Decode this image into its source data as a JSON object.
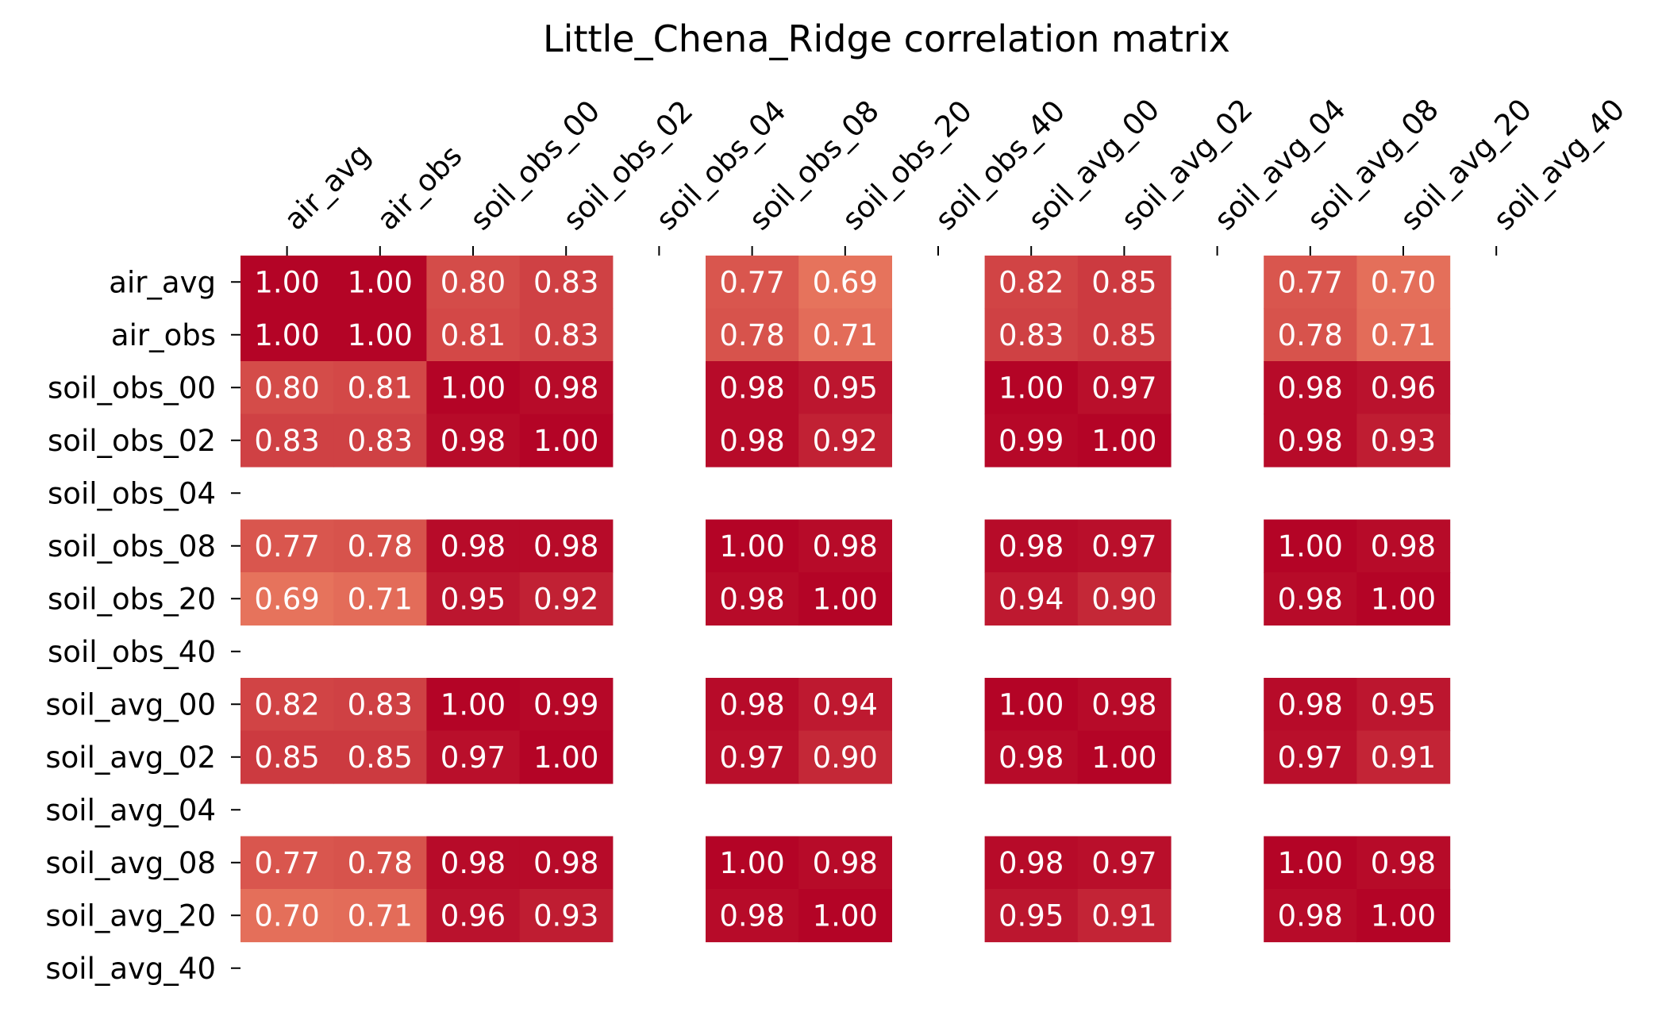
{
  "chart_data": {
    "type": "heatmap",
    "title": "Little_Chena_Ridge correlation matrix",
    "x_labels": [
      "air_avg",
      "air_obs",
      "soil_obs_00",
      "soil_obs_02",
      "soil_obs_04",
      "soil_obs_08",
      "soil_obs_20",
      "soil_obs_40",
      "soil_avg_00",
      "soil_avg_02",
      "soil_avg_04",
      "soil_avg_08",
      "soil_avg_20",
      "soil_avg_40"
    ],
    "y_labels": [
      "air_avg",
      "air_obs",
      "soil_obs_00",
      "soil_obs_02",
      "soil_obs_04",
      "soil_obs_08",
      "soil_obs_20",
      "soil_obs_40",
      "soil_avg_00",
      "soil_avg_02",
      "soil_avg_04",
      "soil_avg_08",
      "soil_avg_20",
      "soil_avg_40"
    ],
    "colormap": "coolwarm-like red ramp",
    "color_low": "#e6735c",
    "color_high": "#b40426",
    "x_tick_position": "top",
    "grid": false,
    "values": [
      [
        1.0,
        1.0,
        0.8,
        0.83,
        null,
        0.77,
        0.69,
        null,
        0.82,
        0.85,
        null,
        0.77,
        0.7,
        null
      ],
      [
        1.0,
        1.0,
        0.81,
        0.83,
        null,
        0.78,
        0.71,
        null,
        0.83,
        0.85,
        null,
        0.78,
        0.71,
        null
      ],
      [
        0.8,
        0.81,
        1.0,
        0.98,
        null,
        0.98,
        0.95,
        null,
        1.0,
        0.97,
        null,
        0.98,
        0.96,
        null
      ],
      [
        0.83,
        0.83,
        0.98,
        1.0,
        null,
        0.98,
        0.92,
        null,
        0.99,
        1.0,
        null,
        0.98,
        0.93,
        null
      ],
      [
        null,
        null,
        null,
        null,
        null,
        null,
        null,
        null,
        null,
        null,
        null,
        null,
        null,
        null
      ],
      [
        0.77,
        0.78,
        0.98,
        0.98,
        null,
        1.0,
        0.98,
        null,
        0.98,
        0.97,
        null,
        1.0,
        0.98,
        null
      ],
      [
        0.69,
        0.71,
        0.95,
        0.92,
        null,
        0.98,
        1.0,
        null,
        0.94,
        0.9,
        null,
        0.98,
        1.0,
        null
      ],
      [
        null,
        null,
        null,
        null,
        null,
        null,
        null,
        null,
        null,
        null,
        null,
        null,
        null,
        null
      ],
      [
        0.82,
        0.83,
        1.0,
        0.99,
        null,
        0.98,
        0.94,
        null,
        1.0,
        0.98,
        null,
        0.98,
        0.95,
        null
      ],
      [
        0.85,
        0.85,
        0.97,
        1.0,
        null,
        0.97,
        0.9,
        null,
        0.98,
        1.0,
        null,
        0.97,
        0.91,
        null
      ],
      [
        null,
        null,
        null,
        null,
        null,
        null,
        null,
        null,
        null,
        null,
        null,
        null,
        null,
        null
      ],
      [
        0.77,
        0.78,
        0.98,
        0.98,
        null,
        1.0,
        0.98,
        null,
        0.98,
        0.97,
        null,
        1.0,
        0.98,
        null
      ],
      [
        0.7,
        0.71,
        0.96,
        0.93,
        null,
        0.98,
        1.0,
        null,
        0.95,
        0.91,
        null,
        0.98,
        1.0,
        null
      ],
      [
        null,
        null,
        null,
        null,
        null,
        null,
        null,
        null,
        null,
        null,
        null,
        null,
        null,
        null
      ]
    ]
  }
}
